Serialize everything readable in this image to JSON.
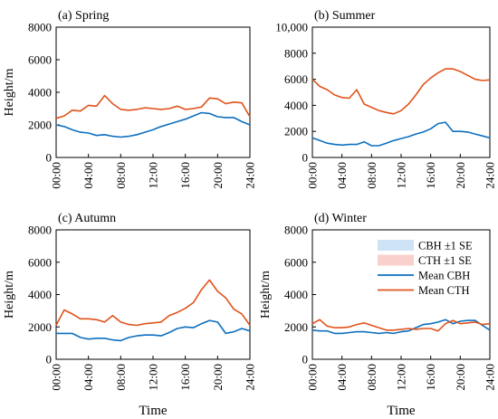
{
  "chart_data": [
    {
      "type": "line",
      "title": "(a) Spring",
      "xlabel": "",
      "ylabel": "Height/m",
      "xlim": [
        0,
        24
      ],
      "ylim": [
        0,
        8000
      ],
      "xticks": [
        "00:00",
        "04:00",
        "08:00",
        "12:00",
        "16:00",
        "20:00",
        "24:00"
      ],
      "yticks": [
        "0",
        "2000",
        "4000",
        "6000",
        "8000"
      ],
      "x": [
        0,
        1,
        2,
        3,
        4,
        5,
        6,
        7,
        8,
        9,
        10,
        11,
        12,
        13,
        14,
        15,
        16,
        17,
        18,
        19,
        20,
        21,
        22,
        23,
        24
      ],
      "series": [
        {
          "name": "Mean CBH",
          "values": [
            2000,
            1900,
            1700,
            1550,
            1500,
            1350,
            1400,
            1300,
            1250,
            1300,
            1400,
            1550,
            1700,
            1900,
            2050,
            2200,
            2350,
            2550,
            2750,
            2700,
            2500,
            2450,
            2450,
            2200,
            2000
          ]
        },
        {
          "name": "Mean CTH",
          "values": [
            2400,
            2550,
            2900,
            2850,
            3200,
            3150,
            3800,
            3300,
            2950,
            2900,
            2950,
            3050,
            3000,
            2950,
            3000,
            3150,
            2950,
            3000,
            3100,
            3650,
            3600,
            3300,
            3400,
            3350,
            2500
          ]
        }
      ]
    },
    {
      "type": "line",
      "title": "(b) Summer",
      "xlabel": "",
      "ylabel": "",
      "xlim": [
        0,
        24
      ],
      "ylim": [
        0,
        10000
      ],
      "xticks": [
        "00:00",
        "04:00",
        "08:00",
        "12:00",
        "16:00",
        "20:00",
        "24:00"
      ],
      "yticks": [
        "0",
        "2000",
        "4000",
        "6000",
        "8000",
        "10,000"
      ],
      "x": [
        0,
        1,
        2,
        3,
        4,
        5,
        6,
        7,
        8,
        9,
        10,
        11,
        12,
        13,
        14,
        15,
        16,
        17,
        18,
        19,
        20,
        21,
        22,
        23,
        24
      ],
      "series": [
        {
          "name": "Mean CBH",
          "values": [
            1500,
            1300,
            1100,
            1000,
            950,
            1000,
            1000,
            1200,
            900,
            900,
            1100,
            1300,
            1450,
            1600,
            1800,
            1950,
            2200,
            2600,
            2700,
            2000,
            2000,
            1950,
            1800,
            1650,
            1500
          ]
        },
        {
          "name": "Mean CTH",
          "values": [
            6000,
            5450,
            5200,
            4800,
            4600,
            4550,
            5200,
            4100,
            3850,
            3600,
            3450,
            3350,
            3600,
            4100,
            4800,
            5600,
            6100,
            6500,
            6800,
            6800,
            6600,
            6300,
            6000,
            5900,
            5950
          ]
        }
      ]
    },
    {
      "type": "line",
      "title": "(c) Autumn",
      "xlabel": "Time",
      "ylabel": "Height/m",
      "xlim": [
        0,
        24
      ],
      "ylim": [
        0,
        8000
      ],
      "xticks": [
        "00:00",
        "04:00",
        "08:00",
        "12:00",
        "16:00",
        "20:00",
        "24:00"
      ],
      "yticks": [
        "0",
        "2000",
        "4000",
        "6000",
        "8000"
      ],
      "x": [
        0,
        1,
        2,
        3,
        4,
        5,
        6,
        7,
        8,
        9,
        10,
        11,
        12,
        13,
        14,
        15,
        16,
        17,
        18,
        19,
        20,
        21,
        22,
        23,
        24
      ],
      "series": [
        {
          "name": "Mean CBH",
          "values": [
            1600,
            1600,
            1600,
            1350,
            1250,
            1300,
            1300,
            1200,
            1150,
            1350,
            1450,
            1500,
            1500,
            1450,
            1650,
            1900,
            2000,
            1950,
            2200,
            2400,
            2300,
            1600,
            1700,
            1900,
            1750
          ]
        },
        {
          "name": "Mean CTH",
          "values": [
            2100,
            3050,
            2800,
            2500,
            2500,
            2450,
            2300,
            2700,
            2300,
            2150,
            2100,
            2200,
            2250,
            2300,
            2700,
            2900,
            3150,
            3500,
            4300,
            4900,
            4200,
            3800,
            3100,
            2800,
            2100
          ]
        }
      ]
    },
    {
      "type": "line",
      "title": "(d) Winter",
      "xlabel": "Time",
      "ylabel": "Height/m",
      "xlim": [
        0,
        24
      ],
      "ylim": [
        0,
        8000
      ],
      "xticks": [
        "00:00",
        "04:00",
        "08:00",
        "12:00",
        "16:00",
        "20:00",
        "24:00"
      ],
      "yticks": [
        "0",
        "2000",
        "4000",
        "6000",
        "8000"
      ],
      "x": [
        0,
        1,
        2,
        3,
        4,
        5,
        6,
        7,
        8,
        9,
        10,
        11,
        12,
        13,
        14,
        15,
        16,
        17,
        18,
        19,
        20,
        21,
        22,
        23,
        24
      ],
      "series": [
        {
          "name": "Mean CBH",
          "values": [
            1800,
            1750,
            1750,
            1600,
            1600,
            1650,
            1700,
            1700,
            1650,
            1600,
            1650,
            1600,
            1700,
            1750,
            1950,
            2150,
            2200,
            2300,
            2450,
            2200,
            2350,
            2400,
            2400,
            2100,
            1800
          ]
        },
        {
          "name": "Mean CTH",
          "values": [
            2200,
            2450,
            2050,
            1950,
            1950,
            2000,
            2150,
            2250,
            2100,
            1950,
            1800,
            1800,
            1850,
            1900,
            1850,
            1900,
            1900,
            1750,
            2200,
            2400,
            2200,
            2250,
            2300,
            2150,
            2200
          ]
        }
      ],
      "legend": {
        "placement": "right",
        "entries": [
          {
            "label": "CBH ±1 SE",
            "kind": "band",
            "color": "#cfe3f7"
          },
          {
            "label": "CTH ±1 SE",
            "kind": "band",
            "color": "#f9d0cc"
          },
          {
            "label": "Mean CBH",
            "kind": "line",
            "color": "#0d6fbf"
          },
          {
            "label": "Mean CTH",
            "kind": "line",
            "color": "#e0531b"
          }
        ]
      }
    }
  ],
  "colors": {
    "cbh": "#0d6fbf",
    "cth": "#e0531b",
    "cbh_band": "#cfe3f7",
    "cth_band": "#f9d0cc"
  }
}
